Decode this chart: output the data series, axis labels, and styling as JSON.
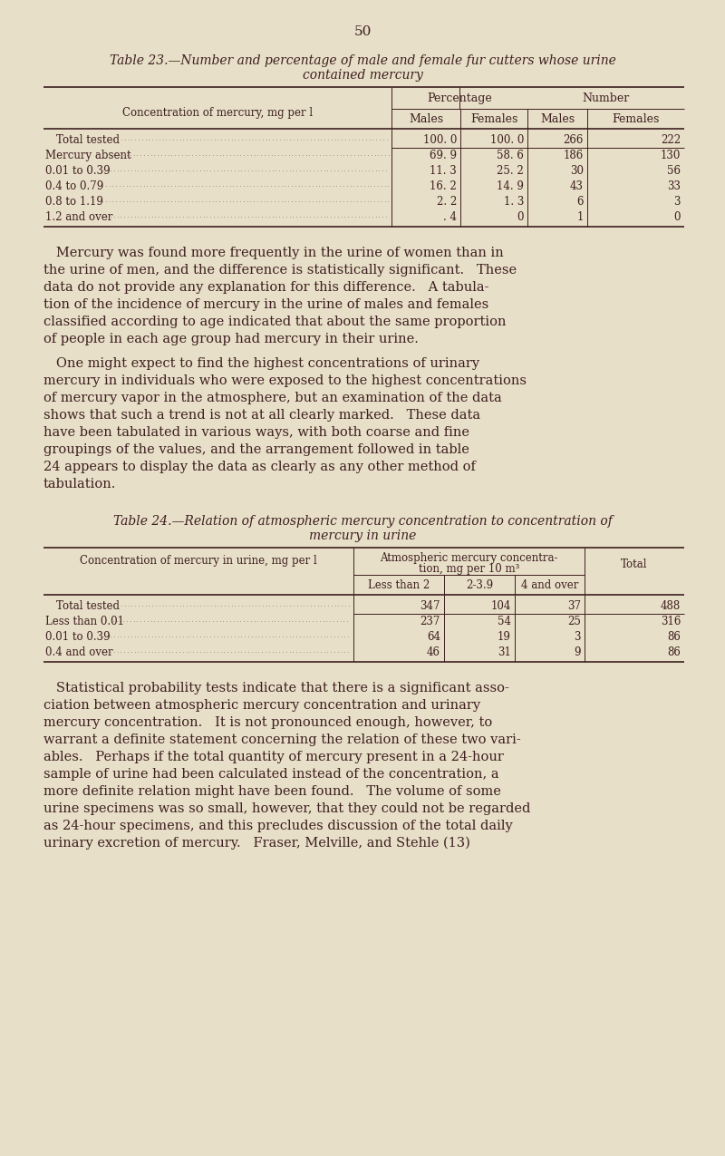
{
  "bg_color": "#e8dfc8",
  "text_color": "#3d1f1f",
  "page_number": "50",
  "table23": {
    "title_line1": "Table 23.—Number and percentage of male and female fur cutters whose urine",
    "title_line2": "contained mercury",
    "col_header1": "Percentage",
    "col_header2": "Number",
    "sub_headers": [
      "Males",
      "Females",
      "Males",
      "Females"
    ],
    "row_label_header": "Concentration of mercury, mg per l",
    "rows": [
      {
        "label": "Total tested",
        "indent": 12,
        "vals": [
          "100. 0",
          "100. 0",
          "266",
          "222"
        ]
      },
      {
        "label": "Mercury absent",
        "indent": 0,
        "vals": [
          "69. 9",
          "58. 6",
          "186",
          "130"
        ]
      },
      {
        "label": "0.01 to 0.39",
        "indent": 0,
        "vals": [
          "11. 3",
          "25. 2",
          "30",
          "56"
        ]
      },
      {
        "label": "0.4 to 0.79",
        "indent": 0,
        "vals": [
          "16. 2",
          "14. 9",
          "43",
          "33"
        ]
      },
      {
        "label": "0.8 to 1.19",
        "indent": 0,
        "vals": [
          "2. 2",
          "1. 3",
          "6",
          "3"
        ]
      },
      {
        "label": "1.2 and over",
        "indent": 0,
        "vals": [
          ". 4",
          "0",
          "1",
          "0"
        ]
      }
    ]
  },
  "para1_lines": [
    "   Mercury was found more frequently in the urine of women than in",
    "the urine of men, and the difference is statistically significant.   These",
    "data do not provide any explanation for this difference.   A tabula-",
    "tion of the incidence of mercury in the urine of males and females",
    "classified according to age indicated that about the same proportion",
    "of people in each age group had mercury in their urine."
  ],
  "para2_lines": [
    "   One might expect to find the highest concentrations of urinary",
    "mercury in individuals who were exposed to the highest concentrations",
    "of mercury vapor in the atmosphere, but an examination of the data",
    "shows that such a trend is not at all clearly marked.   These data",
    "have been tabulated in various ways, with both coarse and fine",
    "groupings of the values, and the arrangement followed in table",
    "24 appears to display the data as clearly as any other method of",
    "tabulation."
  ],
  "table24": {
    "title_line1": "Table 24.—Relation of atmospheric mercury concentration to concentration of",
    "title_line2": "mercury in urine",
    "col_header1": "Atmospheric mercury concentra-",
    "col_header1b": "tion, mg per 10 m³",
    "sub_headers": [
      "Less than 2",
      "2-3.9",
      "4 and over",
      "Total"
    ],
    "row_label_header": "Concentration of mercury in urine, mg per l",
    "rows": [
      {
        "label": "Total tested",
        "indent": 12,
        "vals": [
          "347",
          "104",
          "37",
          "488"
        ]
      },
      {
        "label": "Less than 0.01",
        "indent": 0,
        "vals": [
          "237",
          "54",
          "25",
          "316"
        ]
      },
      {
        "label": "0.01 to 0.39",
        "indent": 0,
        "vals": [
          "64",
          "19",
          "3",
          "86"
        ]
      },
      {
        "label": "0.4 and over",
        "indent": 0,
        "vals": [
          "46",
          "31",
          "9",
          "86"
        ]
      }
    ]
  },
  "para3_lines": [
    "   Statistical probability tests indicate that there is a significant asso-",
    "ciation between atmospheric mercury concentration and urinary",
    "mercury concentration.   It is not pronounced enough, however, to",
    "warrant a definite statement concerning the relation of these two vari-",
    "ables.   Perhaps if the total quantity of mercury present in a 24-hour",
    "sample of urine had been calculated instead of the concentration, a",
    "more definite relation might have been found.   The volume of some",
    "urine specimens was so small, however, that they could not be regarded",
    "as 24-hour specimens, and this precludes discussion of the total daily",
    "urinary excretion of mercury.   Fraser, Melville, and Stehle (13)"
  ]
}
